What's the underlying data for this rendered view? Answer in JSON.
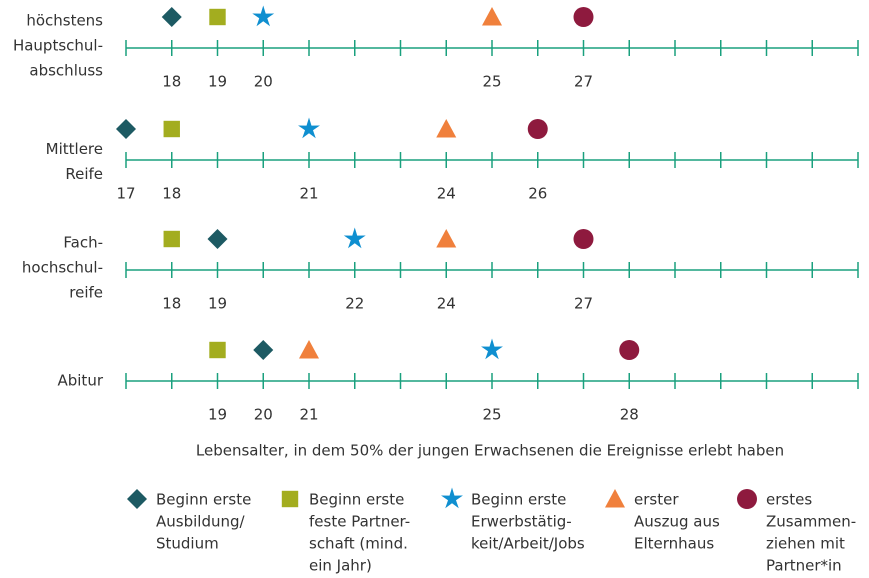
{
  "chart_data": {
    "type": "dot",
    "categories": [
      [
        "höchstens",
        "Hauptschul-",
        "abschluss"
      ],
      [
        "Mittlere",
        "Reife"
      ],
      [
        "Fach-",
        "hochschul-",
        "reife"
      ],
      [
        "Abitur"
      ]
    ],
    "series": [
      {
        "name": [
          "Beginn erste",
          "Ausbildung/",
          "Studium"
        ],
        "color": "#1d5a63",
        "marker": "diamond",
        "values": [
          18,
          17,
          19,
          20
        ]
      },
      {
        "name": [
          "Beginn erste",
          "feste Partner-",
          "schaft (mind.",
          "ein Jahr)"
        ],
        "color": "#a3ad1f",
        "marker": "square",
        "values": [
          19,
          18,
          18,
          19
        ]
      },
      {
        "name": [
          "Beginn erste",
          "Erwerbstätig-",
          "keit/Arbeit/Jobs"
        ],
        "color": "#0f8fd0",
        "marker": "star",
        "values": [
          20,
          21,
          22,
          25
        ]
      },
      {
        "name": [
          "erster",
          "Auszug aus",
          "Elternhaus"
        ],
        "color": "#f0803c",
        "marker": "triangle",
        "values": [
          25,
          24,
          24,
          21
        ]
      },
      {
        "name": [
          "erstes",
          "Zusammen-",
          "ziehen mit",
          "Partner*in"
        ],
        "color": "#8e1a3e",
        "marker": "circle",
        "values": [
          27,
          26,
          27,
          28
        ]
      }
    ],
    "xlabel": "Lebensalter, in dem 50% der jungen Erwachsenen die Ereignisse erlebt haben",
    "xlim": [
      17,
      33
    ],
    "xticks": [
      17,
      18,
      19,
      20,
      21,
      22,
      23,
      24,
      25,
      26,
      27,
      28,
      29,
      30,
      31,
      32,
      33
    ]
  }
}
